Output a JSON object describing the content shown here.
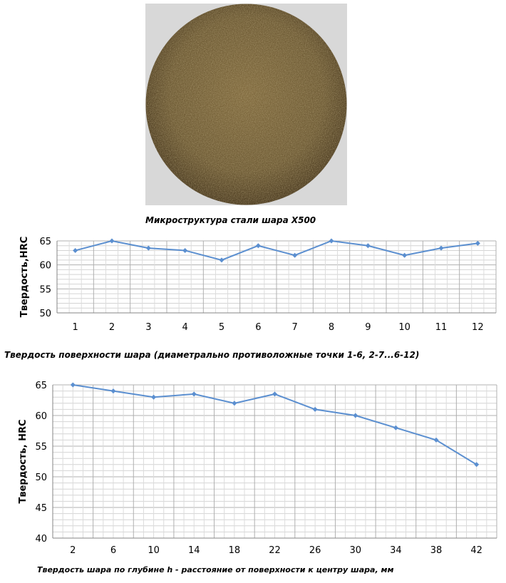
{
  "figure": {
    "micro_caption": "Микроструктура стали шара Х500",
    "micro_colors": {
      "background": "#d8d8d8",
      "core": "#806a3e",
      "mid": "#6d5a34",
      "edge": "#4a3a20"
    }
  },
  "chart_data": [
    {
      "type": "line",
      "title": "Твердость поверхности шара (диаметрально противоложные точки 1-6, 2-7...6-12)",
      "xlabel": "",
      "ylabel": "Твердость,HRC",
      "categories": [
        "1",
        "2",
        "3",
        "4",
        "5",
        "6",
        "7",
        "8",
        "9",
        "10",
        "11",
        "12"
      ],
      "series": [
        {
          "values": [
            63,
            65,
            63.5,
            63,
            61,
            64,
            62,
            65,
            64,
            62,
            63.5,
            64.5
          ]
        }
      ],
      "ylim": [
        50,
        65
      ],
      "yticks": [
        "50",
        "55",
        "60",
        "65"
      ],
      "grid": true,
      "color": "#5b8fd0"
    },
    {
      "type": "line",
      "title": "Твердость шара по глубине h - расстояние от поверхности к центру шара, мм",
      "xlabel": "",
      "ylabel": "Твердость, HRC",
      "categories": [
        "2",
        "6",
        "10",
        "14",
        "18",
        "22",
        "26",
        "30",
        "34",
        "38",
        "42"
      ],
      "series": [
        {
          "values": [
            65,
            64,
            63,
            63.5,
            62,
            63.5,
            61,
            60,
            58,
            56,
            52
          ]
        }
      ],
      "ylim": [
        40,
        65
      ],
      "yticks": [
        "40",
        "45",
        "50",
        "55",
        "60",
        "65"
      ],
      "grid": true,
      "color": "#5b8fd0"
    }
  ]
}
